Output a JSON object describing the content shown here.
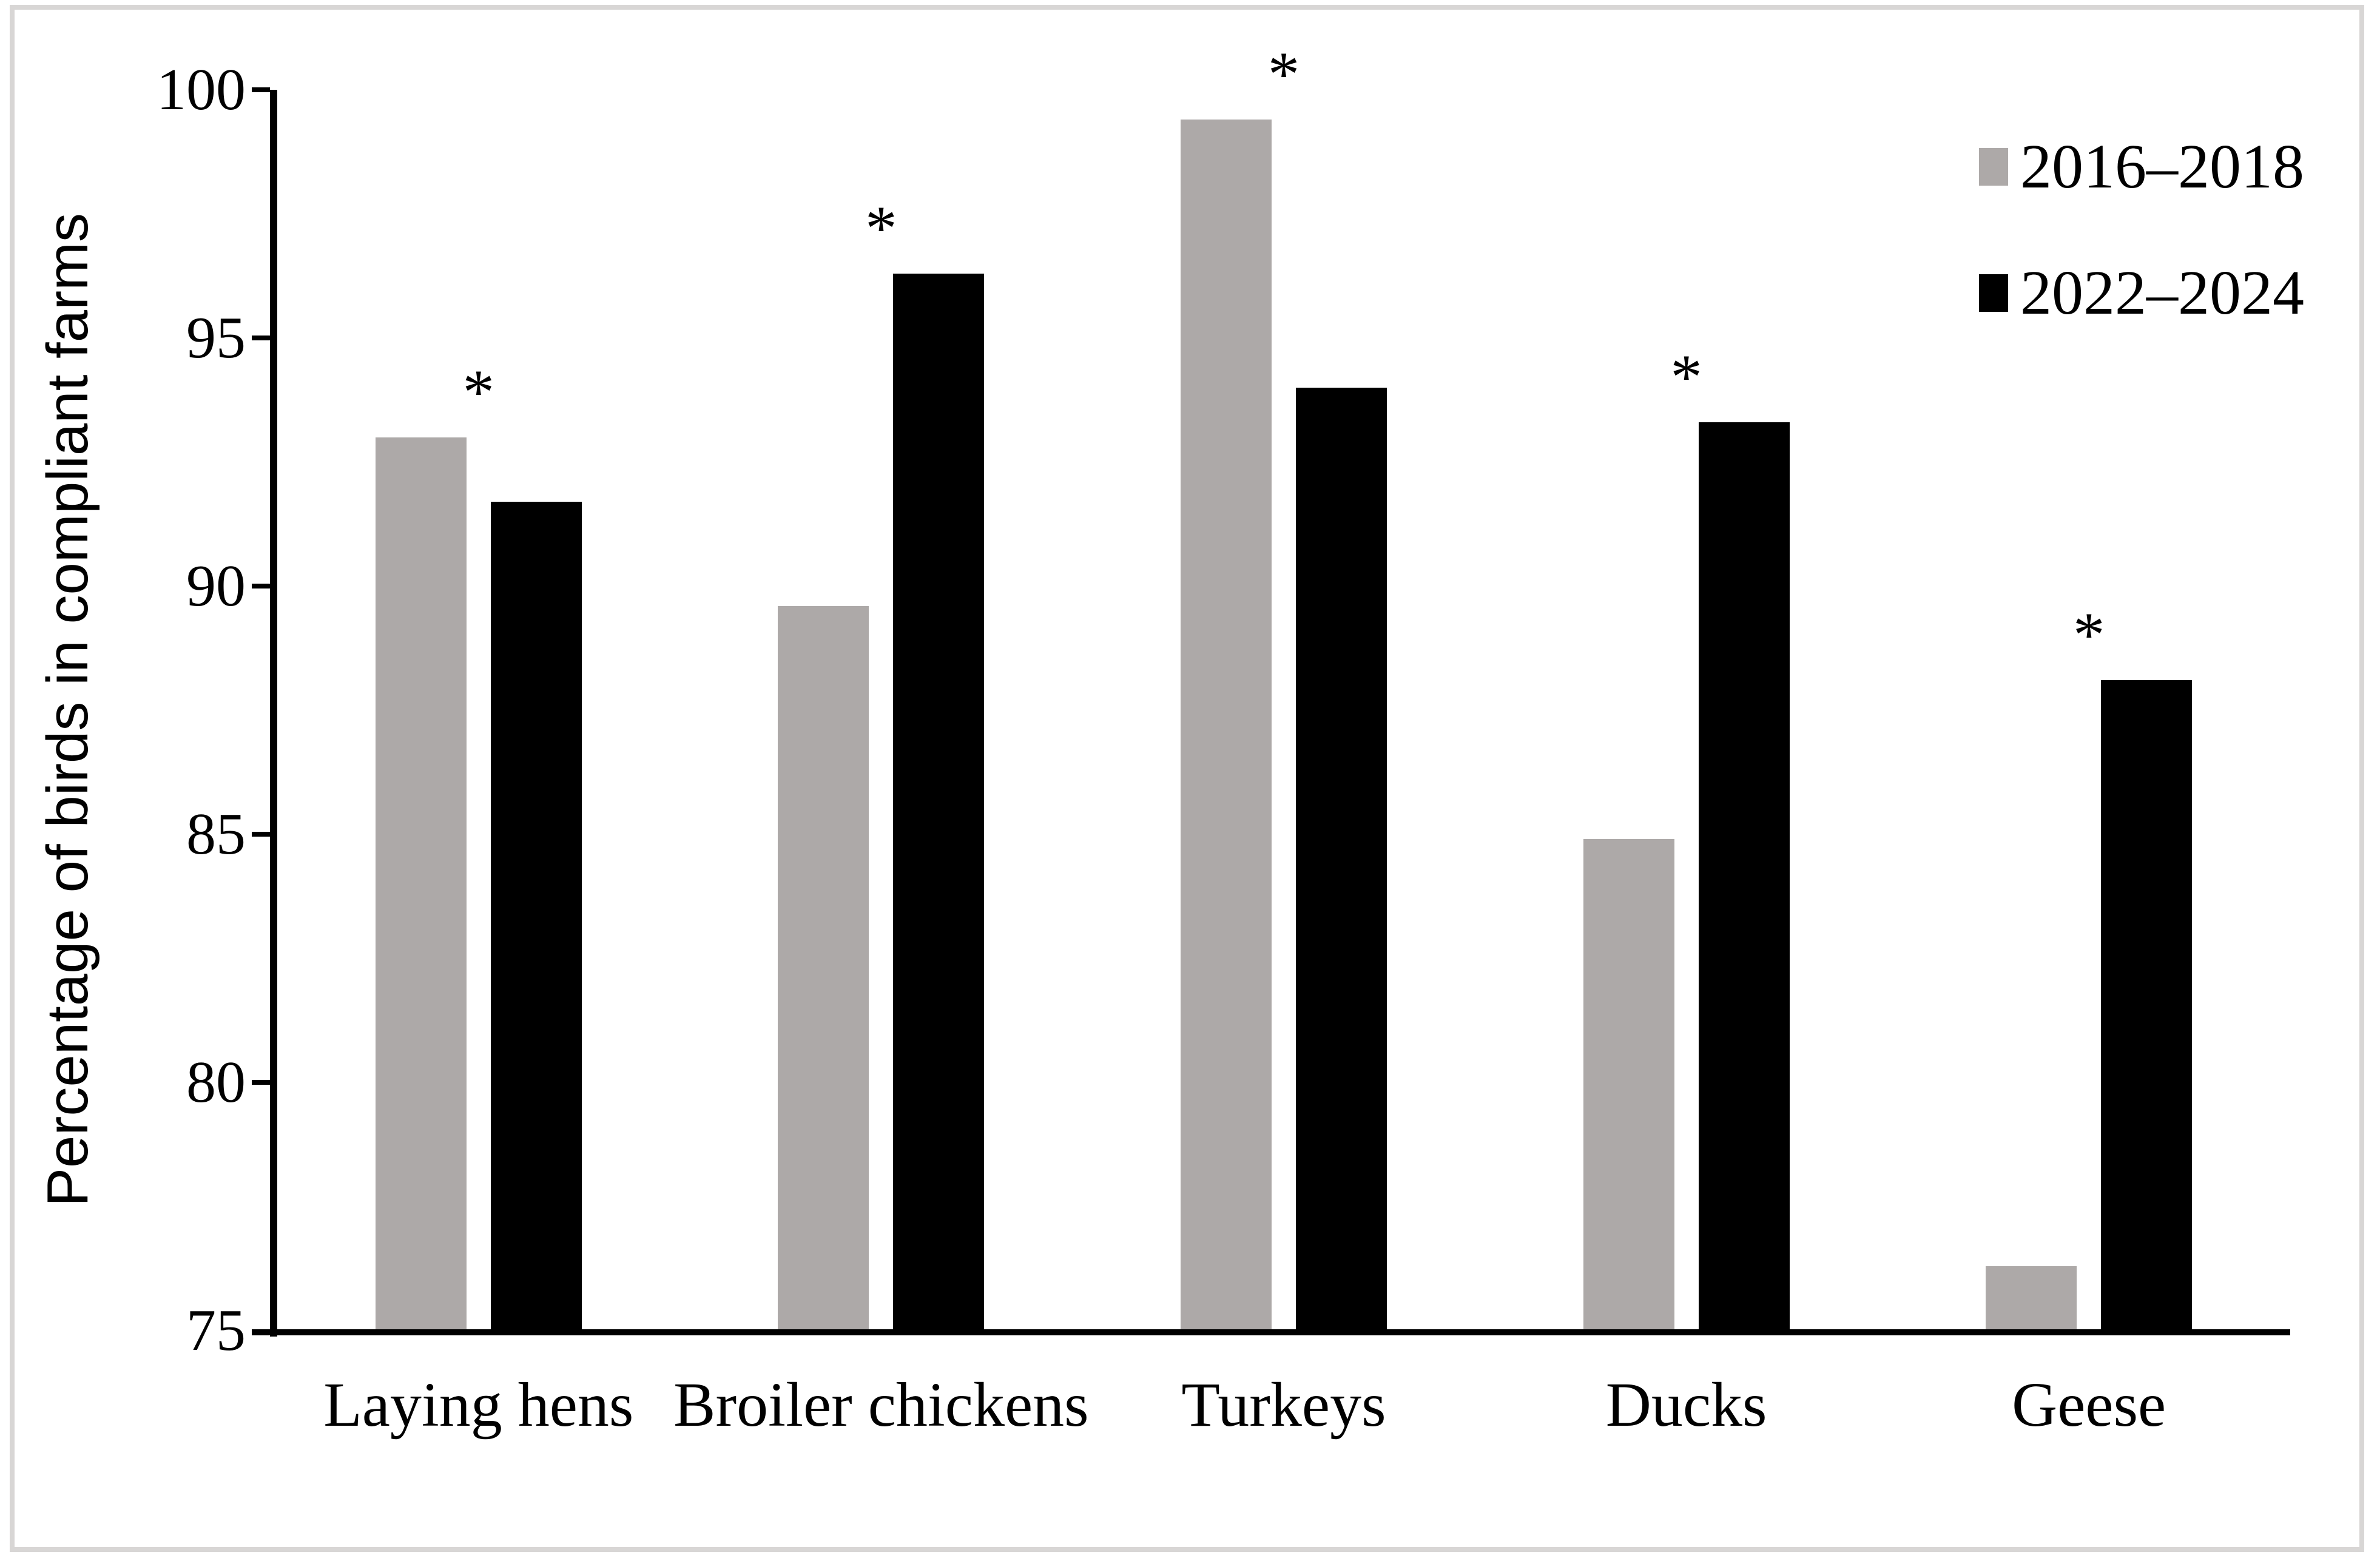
{
  "figure": {
    "background_color": "#ffffff",
    "border_color": "#d8d6d5"
  },
  "chart_data": {
    "type": "bar",
    "title": "",
    "ylabel": "Percentage of birds in compliant farms",
    "xlabel": "",
    "ylim": [
      75,
      100
    ],
    "yticks": [
      75,
      80,
      85,
      90,
      95,
      100
    ],
    "grid": false,
    "legend_position": "top-right",
    "categories": [
      "Laying hens",
      "Broiler chickens",
      "Turkeys",
      "Ducks",
      "Geese"
    ],
    "series": [
      {
        "name": "2016–2018",
        "color": "#ada9a8",
        "values": [
          93.0,
          89.6,
          99.4,
          84.9,
          76.3
        ]
      },
      {
        "name": "2022–2024",
        "color": "#000000",
        "values": [
          91.7,
          96.3,
          94.0,
          93.3,
          88.1
        ]
      }
    ],
    "significance_marker": "*",
    "significant": [
      true,
      true,
      true,
      true,
      true
    ],
    "axis_color": "#000000",
    "text_color": "#000000"
  }
}
